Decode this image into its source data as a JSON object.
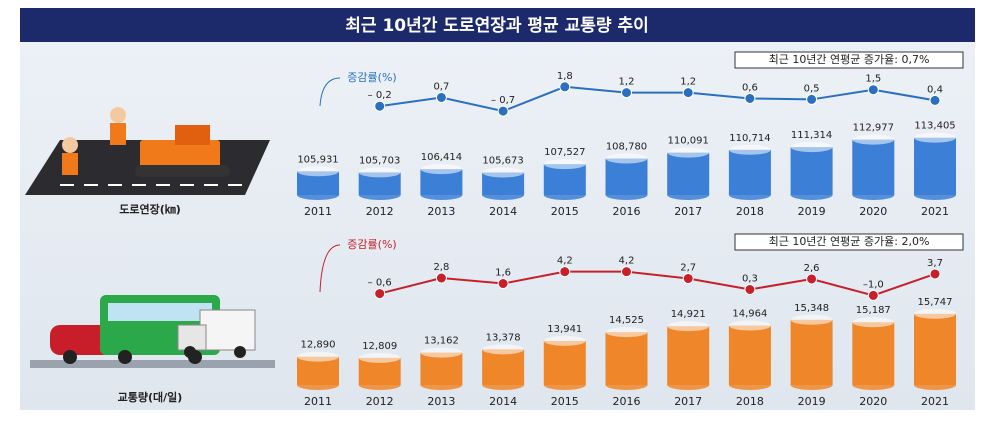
{
  "title": "최근 10년간 도로연장과 평균 교통량 추이",
  "chart_data": [
    {
      "type": "bar",
      "annotation": "최근 10년간 연평균 증가율: 0,7%",
      "categories": [
        "2011",
        "2012",
        "2013",
        "2014",
        "2015",
        "2016",
        "2017",
        "2018",
        "2019",
        "2020",
        "2021"
      ],
      "ylim": [
        104000,
        114000
      ],
      "y2lim": [
        -1,
        2.5
      ],
      "series": [
        {
          "name": "도로연장(㎞)",
          "color": "#3b7fd6",
          "values": [
            105931,
            105703,
            106414,
            105673,
            107527,
            108780,
            110091,
            110714,
            111314,
            112977,
            113405
          ],
          "value_labels": [
            "105,931",
            "105,703",
            "106,414",
            "105,673",
            "107,527",
            "108,780",
            "110,091",
            "110,714",
            "111,314",
            "112,977",
            "113,405"
          ]
        },
        {
          "name": "증감률(%)",
          "color": "#2a6fc0",
          "axis": "y2",
          "values": [
            null,
            -0.2,
            0.7,
            -0.7,
            1.8,
            1.2,
            1.2,
            0.6,
            0.5,
            1.5,
            0.4
          ],
          "value_labels": [
            null,
            "– 0,2",
            "0,7",
            "– 0,7",
            "1,8",
            "1,2",
            "1,2",
            "0,6",
            "0,5",
            "1,5",
            "0,4"
          ]
        }
      ]
    },
    {
      "type": "bar",
      "annotation": "최근 10년간 연평균 증가율: 2,0%",
      "categories": [
        "2011",
        "2012",
        "2013",
        "2014",
        "2015",
        "2016",
        "2017",
        "2018",
        "2019",
        "2020",
        "2021"
      ],
      "ylim": [
        12000,
        16000
      ],
      "y2lim": [
        -2,
        5
      ],
      "series": [
        {
          "name": "교통량(대/일)",
          "color": "#f0862a",
          "values": [
            12890,
            12809,
            13162,
            13378,
            13941,
            14525,
            14921,
            14964,
            15348,
            15187,
            15747
          ],
          "value_labels": [
            "12,890",
            "12,809",
            "13,162",
            "13,378",
            "13,941",
            "14,525",
            "14,921",
            "14,964",
            "15,348",
            "15,187",
            "15,747"
          ]
        },
        {
          "name": "증감률(%)",
          "color": "#c8202a",
          "axis": "y2",
          "values": [
            null,
            -0.6,
            2.8,
            1.6,
            4.2,
            4.2,
            2.7,
            0.3,
            2.6,
            -1.0,
            3.7
          ],
          "value_labels": [
            null,
            "– 0,6",
            "2,8",
            "1,6",
            "4,2",
            "4,2",
            "2,7",
            "0,3",
            "2,6",
            "–1,0",
            "3,7"
          ]
        }
      ]
    }
  ]
}
